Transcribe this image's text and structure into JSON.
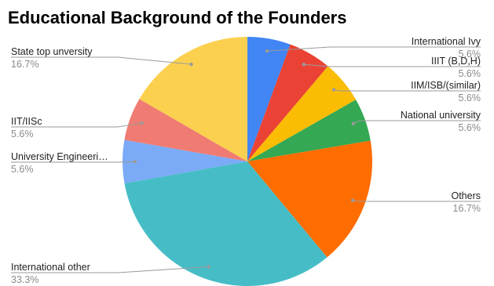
{
  "chart_data": {
    "type": "pie",
    "title": "Educational Background of the Founders",
    "slices": [
      {
        "label": "International Ivy",
        "percent_label": "5.6%",
        "value": 5.6,
        "color": "#4285f4"
      },
      {
        "label": "IIIT (B,D,H)",
        "percent_label": "5.6%",
        "value": 5.6,
        "color": "#ea4335"
      },
      {
        "label": "IIM/ISB/(similar)",
        "percent_label": "5.6%",
        "value": 5.6,
        "color": "#fbbc04"
      },
      {
        "label": "National university",
        "percent_label": "5.6%",
        "value": 5.6,
        "color": "#34a853"
      },
      {
        "label": "Others",
        "percent_label": "16.7%",
        "value": 16.7,
        "color": "#ff6d01"
      },
      {
        "label": "International other",
        "percent_label": "33.3%",
        "value": 33.3,
        "color": "#46bdc6"
      },
      {
        "label": "University Engineeri…",
        "percent_label": "5.6%",
        "value": 5.6,
        "color": "#7baaf7"
      },
      {
        "label": "IIT/IISc",
        "percent_label": "5.6%",
        "value": 5.6,
        "color": "#f07b72"
      },
      {
        "label": "State top unversity",
        "percent_label": "16.7%",
        "value": 16.7,
        "color": "#fcd04f"
      }
    ],
    "start": "top",
    "direction": "clockwise",
    "legend": "none"
  }
}
